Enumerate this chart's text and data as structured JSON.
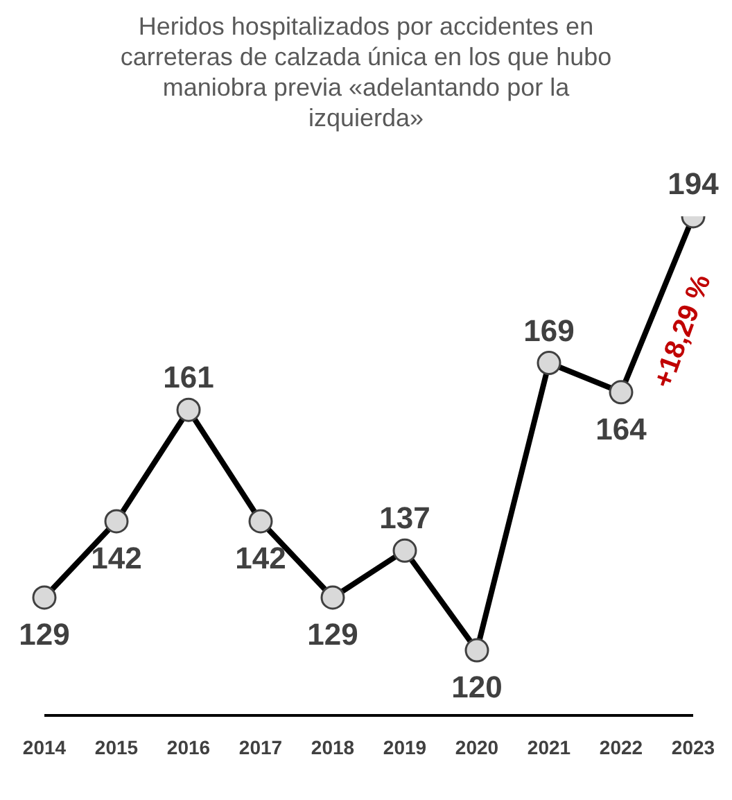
{
  "chart_data": {
    "type": "line",
    "title": "Heridos hospitalizados por accidentes en carreteras de calzada única en los que hubo maniobra previa «adelantando por la izquierda»",
    "categories": [
      "2014",
      "2015",
      "2016",
      "2017",
      "2018",
      "2019",
      "2020",
      "2021",
      "2022",
      "2023"
    ],
    "series": [
      {
        "color": "#000000",
        "values": [
          129,
          142,
          161,
          142,
          129,
          137,
          120,
          169,
          164,
          194
        ]
      }
    ],
    "data_labels": true,
    "marker": "circle",
    "line_style": "solid",
    "tick_labels": "x",
    "annotations": [
      "+18,29 %"
    ]
  }
}
